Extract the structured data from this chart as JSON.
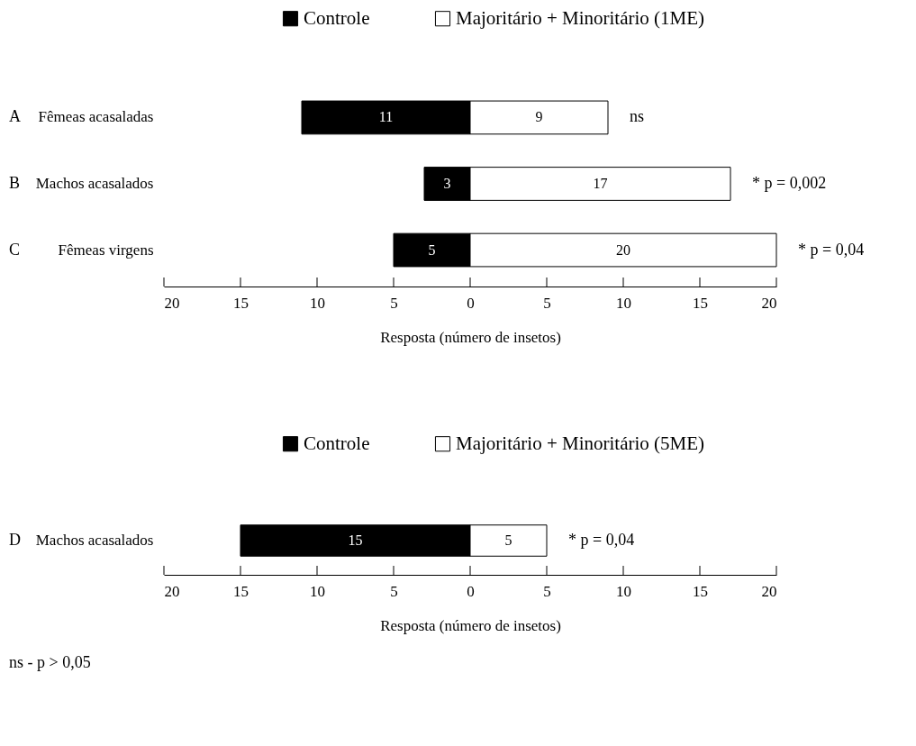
{
  "chart_data": [
    {
      "type": "bar",
      "orientation": "horizontal",
      "legend": "top",
      "data_labels": true,
      "categories": [
        "Fêmeas acasaladas",
        "Machos acasalados",
        "Fêmeas virgens"
      ],
      "series": [
        {
          "name": "Controle",
          "color": "#000000",
          "base": [
            -11,
            -3,
            -5
          ],
          "values": [
            11,
            3,
            5
          ]
        },
        {
          "name": "Majoritário + Minoritário (1ME)",
          "color": "#ffffff",
          "base": [
            0,
            0,
            0
          ],
          "values": [
            9,
            17,
            20
          ]
        }
      ],
      "xlim": [
        -20,
        20
      ],
      "xticks": [
        {
          "value": -20,
          "label": "20"
        },
        {
          "value": -15,
          "label": "15"
        },
        {
          "value": -10,
          "label": "10"
        },
        {
          "value": -5,
          "label": "5"
        },
        0,
        5,
        10,
        15,
        20
      ],
      "xlabel": "Resposta (número de insetos)",
      "annotations": [
        "A",
        "B",
        "C",
        {
          "text": "ns",
          "x": 9,
          "y": "Fêmeas acasaladas"
        },
        {
          "text": "* p = 0,002",
          "x": 17,
          "y": "Machos acasalados"
        },
        {
          "text": "* p = 0,04",
          "x": 20,
          "y": "Fêmeas virgens"
        }
      ]
    },
    {
      "type": "bar",
      "orientation": "horizontal",
      "legend": "top",
      "data_labels": true,
      "categories": [
        "Machos acasalados"
      ],
      "series": [
        {
          "name": "Controle",
          "color": "#000000",
          "base": [
            -15
          ],
          "values": [
            15
          ]
        },
        {
          "name": "Majoritário + Minoritário (5ME)",
          "color": "#ffffff",
          "base": [
            0
          ],
          "values": [
            5
          ]
        }
      ],
      "xlim": [
        -20,
        20
      ],
      "xticks": [
        {
          "value": -20,
          "label": "20"
        },
        {
          "value": -15,
          "label": "15"
        },
        {
          "value": -10,
          "label": "10"
        },
        {
          "value": -5,
          "label": "5"
        },
        0,
        5,
        10,
        15,
        20
      ],
      "xlabel": "Resposta (número de insetos)",
      "annotations": [
        "D",
        {
          "text": "* p = 0,04",
          "x": 5,
          "y": "Machos acasalados"
        },
        "ns - p > 0,05"
      ]
    }
  ]
}
